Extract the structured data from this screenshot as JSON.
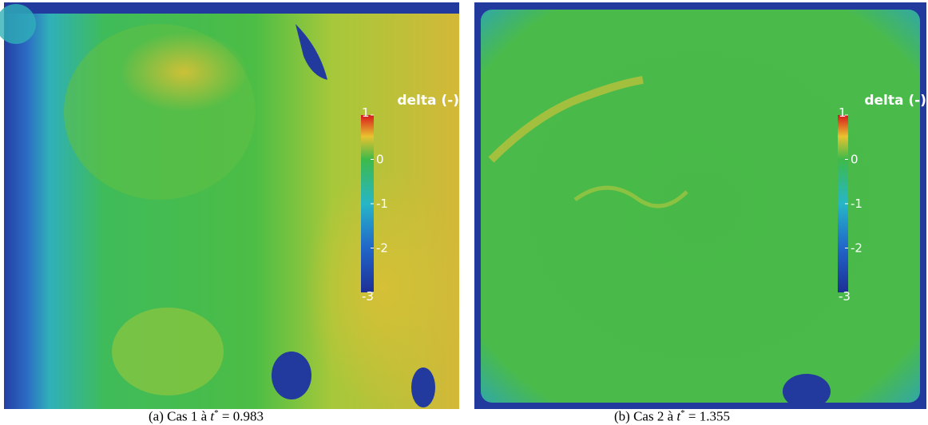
{
  "panels": [
    {
      "caption": {
        "prefix": "(a) Cas 1 à",
        "variable": "t",
        "superscript": "*",
        "value": "= 0.983"
      },
      "colorbar": {
        "title": "delta (-)",
        "range": [
          -3,
          1
        ],
        "ticks": [
          1,
          0,
          -1,
          -2,
          -3
        ]
      }
    },
    {
      "caption": {
        "prefix": "(b) Cas 2 à",
        "variable": "t",
        "superscript": "*",
        "value": "= 1.355"
      },
      "colorbar": {
        "title": "delta (-)",
        "range": [
          -3,
          1
        ],
        "ticks": [
          1,
          0,
          -1,
          -2,
          -3
        ]
      }
    }
  ]
}
